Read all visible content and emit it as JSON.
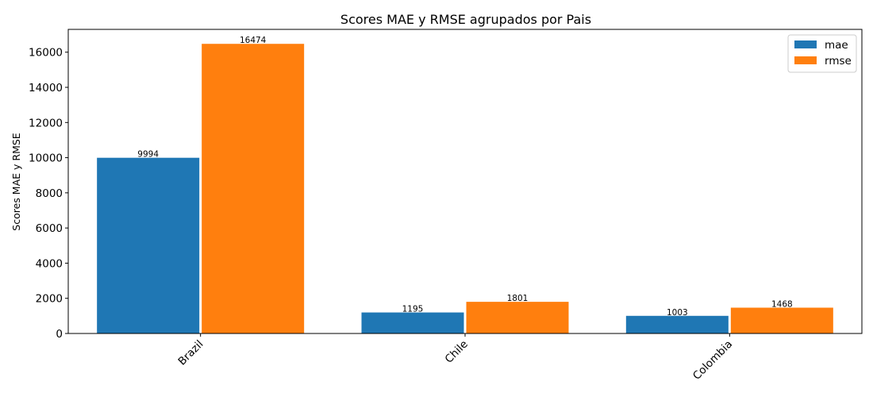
{
  "chart_data": {
    "type": "bar",
    "title": "Scores MAE y RMSE agrupados por Pais",
    "xlabel": "",
    "ylabel": "Scores MAE y RMSE",
    "categories": [
      "Brazil",
      "Chile",
      "Colombia"
    ],
    "series": [
      {
        "name": "mae",
        "values": [
          9994,
          1195,
          1003
        ],
        "color": "#1f77b4"
      },
      {
        "name": "rmse",
        "values": [
          16474,
          1801,
          1468
        ],
        "color": "#ff7f0e"
      }
    ],
    "ylim": [
      0,
      17297
    ],
    "yticks": [
      0,
      2000,
      4000,
      6000,
      8000,
      10000,
      12000,
      14000,
      16000
    ],
    "legend_position": "top-right",
    "grid": false
  }
}
